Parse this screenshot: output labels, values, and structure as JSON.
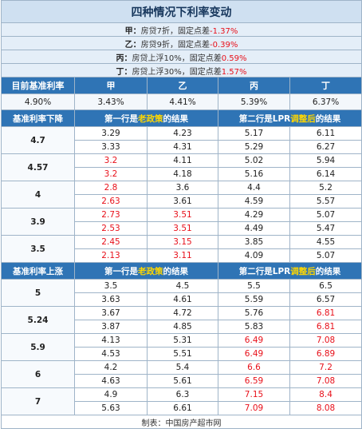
{
  "title": "四种情况下利率变动",
  "notes": [
    {
      "key": "甲：",
      "text": "房贷7折，固定点差",
      "value": "-1.37%"
    },
    {
      "key": "乙：",
      "text": "房贷9折，固定点差",
      "value": "-0.39%"
    },
    {
      "key": "丙：",
      "text": "房贷上浮10%，固定点差",
      "value": "0.59%"
    },
    {
      "key": "丁：",
      "text": "房贷上浮30%，固定点差",
      "value": "1.57%"
    }
  ],
  "header": {
    "label": "目前基准利率",
    "cols": [
      "甲",
      "乙",
      "丙",
      "丁"
    ]
  },
  "base_row": {
    "rate": "4.90%",
    "values": [
      "3.43%",
      "4.41%",
      "5.39%",
      "6.37%"
    ]
  },
  "sections": [
    {
      "label": "基准利率下降",
      "left_note": {
        "pre": "第一行是",
        "hl": "老政策",
        "post": "的结果"
      },
      "right_note": {
        "pre": "第二行是LPR",
        "hl": "调整后",
        "post": "的结果"
      },
      "groups": [
        {
          "rate": "4.7",
          "rows": [
            {
              "cells": [
                "3.29",
                "4.23",
                "5.17",
                "6.11"
              ],
              "red": [
                false,
                false,
                false,
                false
              ]
            },
            {
              "cells": [
                "3.33",
                "4.31",
                "5.29",
                "6.27"
              ],
              "red": [
                false,
                false,
                false,
                false
              ]
            }
          ]
        },
        {
          "rate": "4.57",
          "rows": [
            {
              "cells": [
                "3.2",
                "4.11",
                "5.02",
                "5.94"
              ],
              "red": [
                true,
                false,
                false,
                false
              ]
            },
            {
              "cells": [
                "3.2",
                "4.18",
                "5.16",
                "6.14"
              ],
              "red": [
                true,
                false,
                false,
                false
              ]
            }
          ]
        },
        {
          "rate": "4",
          "rows": [
            {
              "cells": [
                "2.8",
                "3.6",
                "4.4",
                "5.2"
              ],
              "red": [
                true,
                false,
                false,
                false
              ]
            },
            {
              "cells": [
                "2.63",
                "3.61",
                "4.59",
                "5.57"
              ],
              "red": [
                true,
                false,
                false,
                false
              ]
            }
          ]
        },
        {
          "rate": "3.9",
          "rows": [
            {
              "cells": [
                "2.73",
                "3.51",
                "4.29",
                "5.07"
              ],
              "red": [
                true,
                true,
                false,
                false
              ]
            },
            {
              "cells": [
                "2.53",
                "3.51",
                "4.49",
                "5.47"
              ],
              "red": [
                true,
                true,
                false,
                false
              ]
            }
          ]
        },
        {
          "rate": "3.5",
          "rows": [
            {
              "cells": [
                "2.45",
                "3.15",
                "3.85",
                "4.55"
              ],
              "red": [
                true,
                true,
                false,
                false
              ]
            },
            {
              "cells": [
                "2.13",
                "3.11",
                "4.09",
                "5.07"
              ],
              "red": [
                true,
                true,
                false,
                false
              ]
            }
          ]
        }
      ]
    },
    {
      "label": "基准利率上涨",
      "left_note": {
        "pre": "第一行是",
        "hl": "老政策",
        "post": "的结果"
      },
      "right_note": {
        "pre": "第二行是LPR",
        "hl": "调整后",
        "post": "的结果"
      },
      "groups": [
        {
          "rate": "5",
          "rows": [
            {
              "cells": [
                "3.5",
                "4.5",
                "5.5",
                "6.5"
              ],
              "red": [
                false,
                false,
                false,
                false
              ]
            },
            {
              "cells": [
                "3.63",
                "4.61",
                "5.59",
                "6.57"
              ],
              "red": [
                false,
                false,
                false,
                false
              ]
            }
          ]
        },
        {
          "rate": "5.24",
          "rows": [
            {
              "cells": [
                "3.67",
                "4.72",
                "5.76",
                "6.81"
              ],
              "red": [
                false,
                false,
                false,
                true
              ]
            },
            {
              "cells": [
                "3.87",
                "4.85",
                "5.83",
                "6.81"
              ],
              "red": [
                false,
                false,
                false,
                true
              ]
            }
          ]
        },
        {
          "rate": "5.9",
          "rows": [
            {
              "cells": [
                "4.13",
                "5.31",
                "6.49",
                "7.08"
              ],
              "red": [
                false,
                false,
                true,
                true
              ]
            },
            {
              "cells": [
                "4.53",
                "5.51",
                "6.49",
                "6.89"
              ],
              "red": [
                false,
                false,
                true,
                true
              ]
            }
          ]
        },
        {
          "rate": "6",
          "rows": [
            {
              "cells": [
                "4.2",
                "5.4",
                "6.6",
                "7.2"
              ],
              "red": [
                false,
                false,
                true,
                true
              ]
            },
            {
              "cells": [
                "4.63",
                "5.61",
                "6.59",
                "7.08"
              ],
              "red": [
                false,
                false,
                true,
                true
              ]
            }
          ]
        },
        {
          "rate": "7",
          "rows": [
            {
              "cells": [
                "4.9",
                "6.3",
                "7.15",
                "8.4"
              ],
              "red": [
                false,
                false,
                true,
                true
              ]
            },
            {
              "cells": [
                "5.63",
                "6.61",
                "7.09",
                "8.08"
              ],
              "red": [
                false,
                false,
                true,
                true
              ]
            }
          ]
        }
      ]
    }
  ],
  "footer": "制表：中国房产超市网"
}
